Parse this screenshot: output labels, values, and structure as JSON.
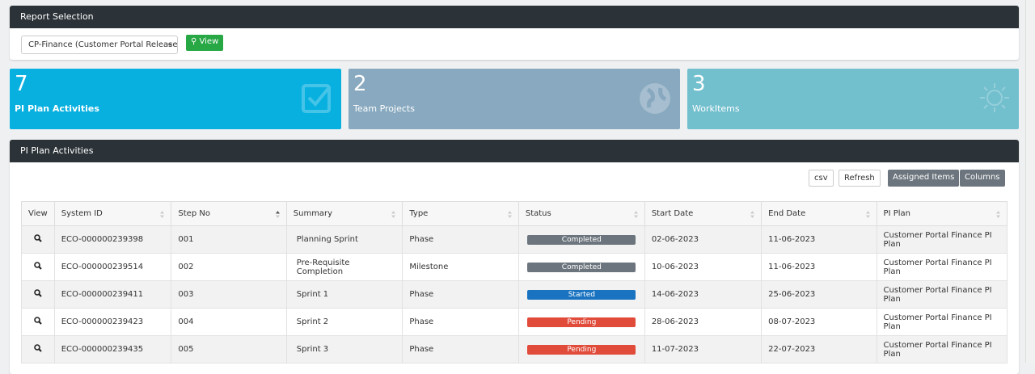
{
  "report_selection": {
    "title": "Report Selection",
    "selected": "CP-Finance (Customer Portal Release ...",
    "button": "View"
  },
  "stats": [
    {
      "value": 7,
      "label": "PI Plan Activities",
      "color": "#08b0e0"
    },
    {
      "value": 2,
      "label": "Team Projects",
      "color": "#88a9bf"
    },
    {
      "value": 3,
      "label": "WorkItems",
      "color": "#72bfce"
    }
  ],
  "panel": {
    "title": "PI Plan Activities",
    "buttons": [
      "csv",
      "Refresh",
      "Assigned Items",
      "Columns"
    ]
  },
  "table": {
    "headers": [
      "View",
      "System ID",
      "Step No",
      "Summary",
      "Type",
      "Status",
      "Start Date",
      "End Date",
      "PI Plan"
    ],
    "rows": [
      [
        "ECO-000000239398",
        "001",
        "Planning Sprint",
        "Phase",
        "Completed",
        "02-06-2023",
        "11-06-2023",
        "Customer Portal Finance PI Plan"
      ],
      [
        "ECO-000000239514",
        "002",
        "Pre-Requisite Completion",
        "Milestone",
        "Completed",
        "10-06-2023",
        "11-06-2023",
        "Customer Portal Finance PI Plan"
      ],
      [
        "ECO-000000239411",
        "003",
        "Sprint 1",
        "Phase",
        "Started",
        "14-06-2023",
        "25-06-2023",
        "Customer Portal Finance PI Plan"
      ],
      [
        "ECO-000000239423",
        "004",
        "Sprint 2",
        "Phase",
        "Pending",
        "28-06-2023",
        "08-07-2023",
        "Customer Portal Finance PI Plan"
      ],
      [
        "ECO-000000239435",
        "005",
        "Sprint 3",
        "Phase",
        "Pending",
        "11-07-2023",
        "22-07-2023",
        "Customer Portal Finance PI Plan"
      ]
    ],
    "status_colors": [
      "#6c757d",
      "#6c757d",
      "#1a73c0",
      "#e04b3a",
      "#e04b3a"
    ]
  }
}
